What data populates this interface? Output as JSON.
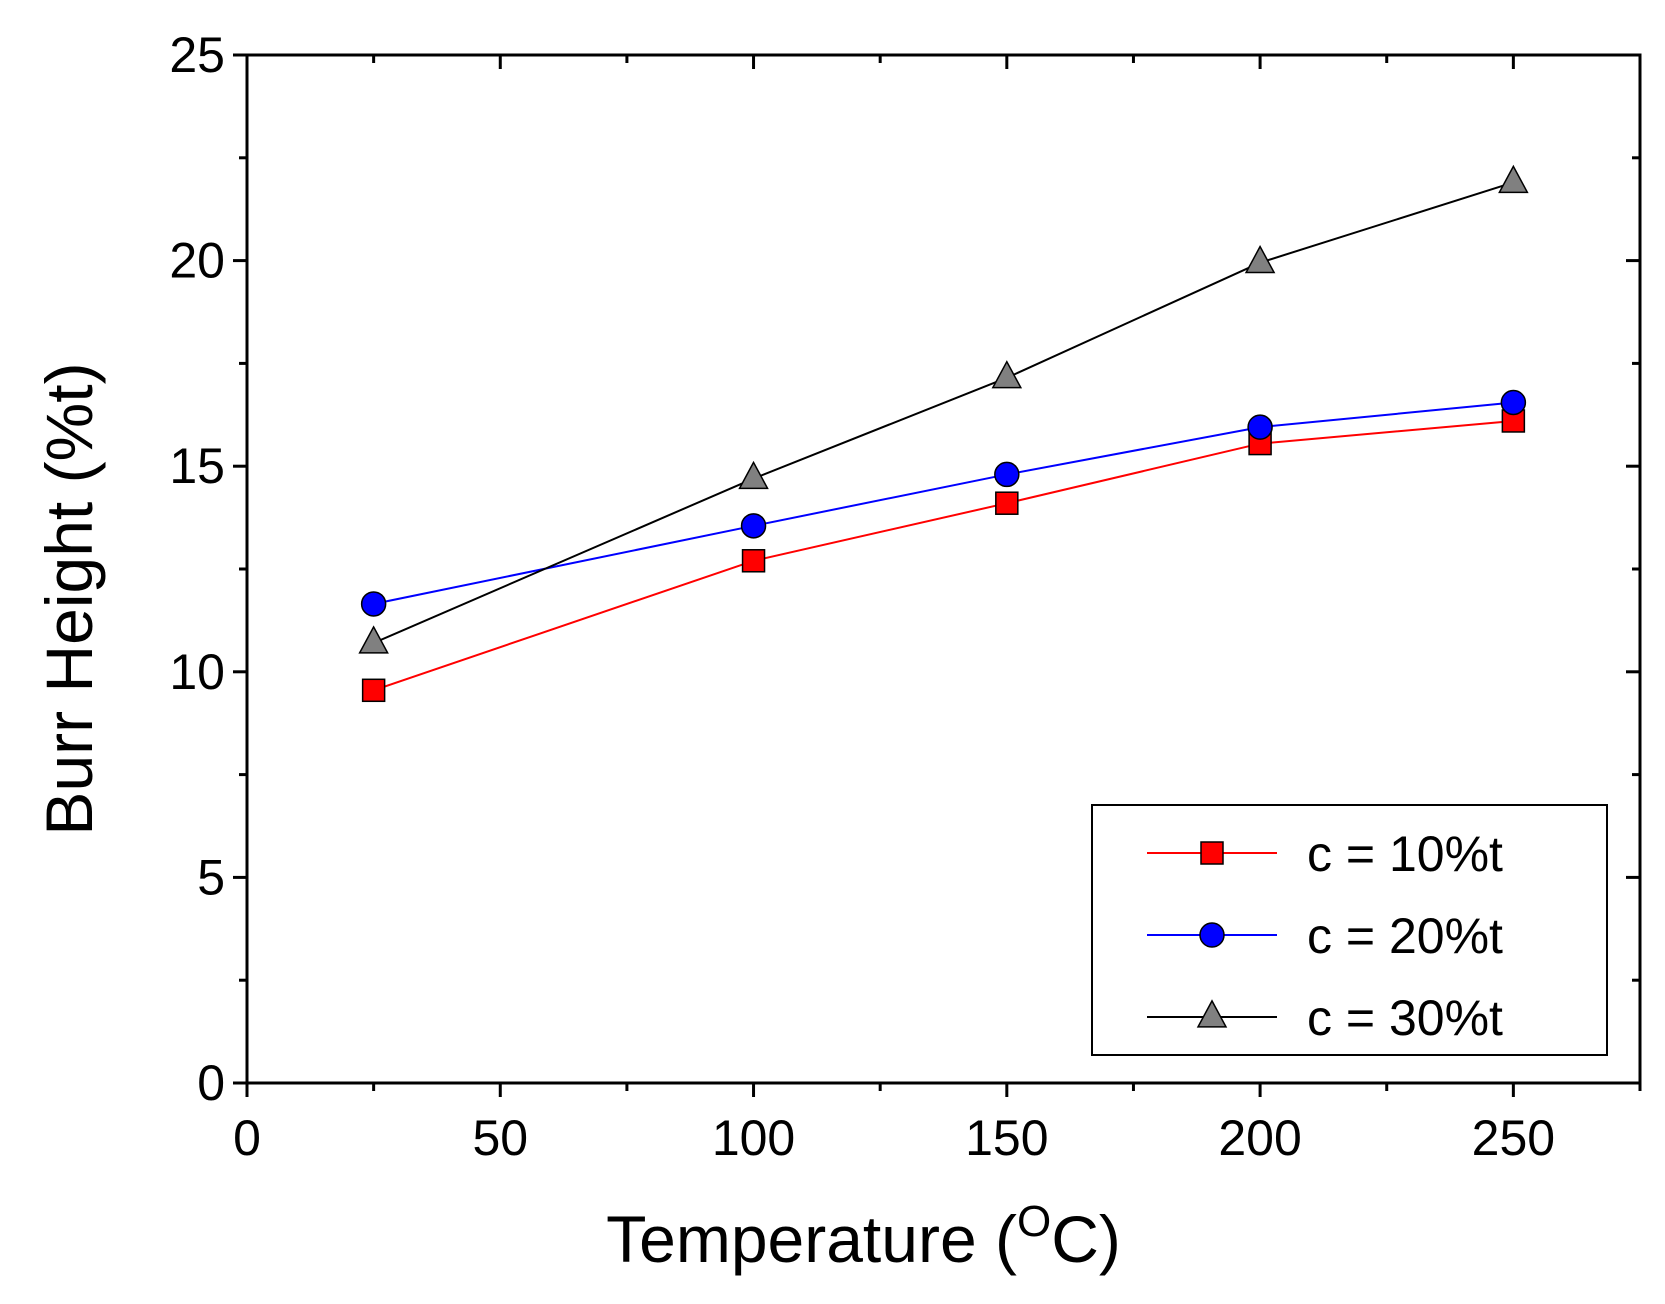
{
  "chart_data": {
    "type": "line",
    "title": "",
    "xlabel": "Temperature (",
    "xlabel_sup": "O",
    "xlabel_end": "C)",
    "ylabel": "Burr Height (%t)",
    "xlim": [
      0,
      275
    ],
    "ylim": [
      0,
      25
    ],
    "xticks": [
      0,
      50,
      100,
      150,
      200,
      250
    ],
    "yticks": [
      0,
      5,
      10,
      15,
      20,
      25
    ],
    "x": [
      25,
      100,
      150,
      200,
      250
    ],
    "legend_position": "bottom-right",
    "series": [
      {
        "name": "c = 10%t",
        "color": "#ff0000",
        "marker": "square",
        "marker_fill": "#ff0000",
        "values": [
          9.55,
          12.7,
          14.1,
          15.55,
          16.1
        ]
      },
      {
        "name": "c = 20%t",
        "color": "#0000ff",
        "marker": "circle",
        "marker_fill": "#0000ff",
        "values": [
          11.65,
          13.55,
          14.8,
          15.95,
          16.55
        ]
      },
      {
        "name": "c = 30%t",
        "color": "#000000",
        "marker": "triangle",
        "marker_fill": "#808080",
        "values": [
          10.7,
          14.7,
          17.15,
          19.95,
          21.9
        ]
      }
    ]
  }
}
